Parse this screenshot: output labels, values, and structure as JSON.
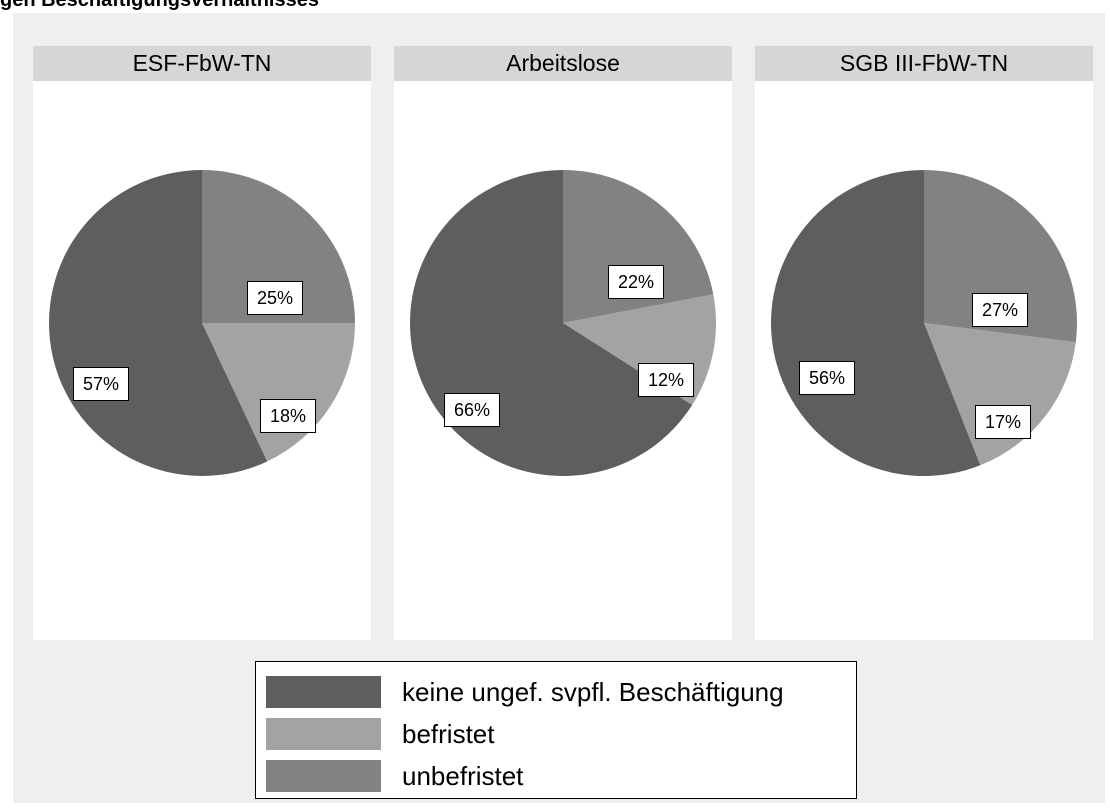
{
  "title": "gen Beschäftigungsverhältnisses",
  "colors": {
    "keine": "#5e5e5e",
    "befristet": "#a3a3a3",
    "unbefristet": "#828282",
    "figure_background": "#efefef",
    "panel_header": "#d6d6d6"
  },
  "chart_data": {
    "type": "pie",
    "categories": [
      "keine ungef. svpfl. Beschäftigung",
      "befristet",
      "unbefristet"
    ],
    "panels": [
      {
        "name": "ESF-FbW-TN",
        "values": [
          57,
          18,
          25
        ],
        "labels": [
          "57%",
          "18%",
          "25%"
        ]
      },
      {
        "name": "Arbeitslose",
        "values": [
          66,
          12,
          22
        ],
        "labels": [
          "66%",
          "12%",
          "22%"
        ]
      },
      {
        "name": "SGB III-FbW-TN",
        "values": [
          56,
          17,
          27
        ],
        "labels": [
          "56%",
          "17%",
          "27%"
        ]
      }
    ],
    "legend": {
      "position": "bottom-center",
      "entries": [
        "keine ungef. svpfl. Beschäftigung",
        "befristet",
        "unbefristet"
      ]
    }
  }
}
